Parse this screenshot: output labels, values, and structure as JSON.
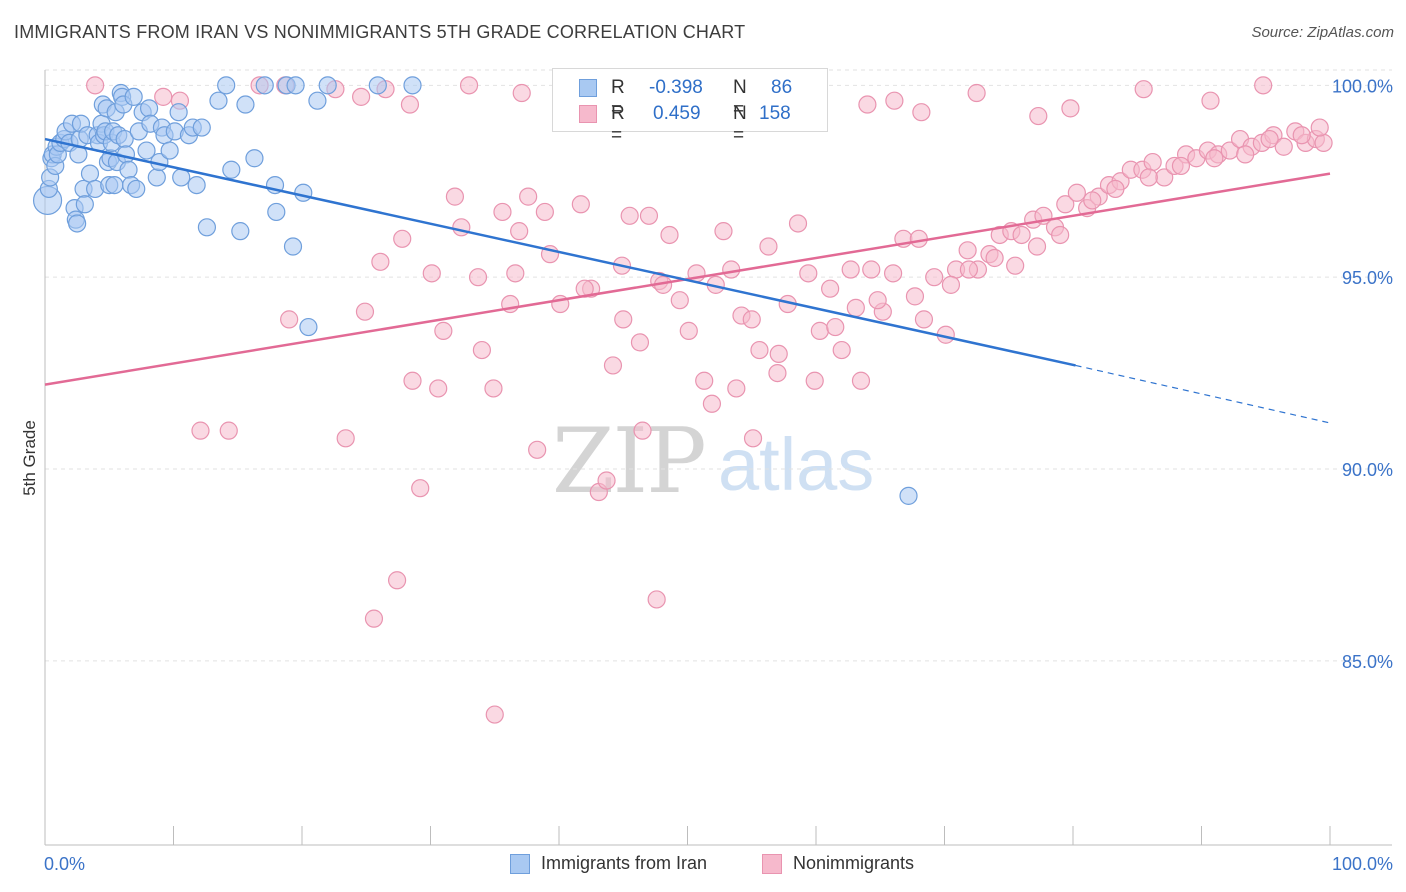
{
  "header": {
    "title": "IMMIGRANTS FROM IRAN VS NONIMMIGRANTS 5TH GRADE CORRELATION CHART",
    "source": "Source: ZipAtlas.com"
  },
  "watermark": {
    "zip": "ZIP",
    "atlas": "atlas"
  },
  "legend": {
    "rows": [
      {
        "r_label": "R =",
        "r_value": "-0.398",
        "n_label": "N =",
        "n_value": "86"
      },
      {
        "r_label": "R =",
        "r_value": "0.459",
        "n_label": "N =",
        "n_value": "158"
      }
    ]
  },
  "bottom_legend": {
    "items": [
      {
        "label": "Immigrants from Iran"
      },
      {
        "label": "Nonimmigrants"
      }
    ]
  },
  "colors": {
    "blue_fill": "#a9c9f2",
    "blue_stroke": "#6f9fdc",
    "blue_line": "#2f74d0",
    "pink_fill": "#f6b9cc",
    "pink_stroke": "#e994b0",
    "pink_line": "#e26a95",
    "tick_text": "#3b73c8",
    "grid": "#e2e2e2"
  },
  "chart_data": {
    "type": "scatter",
    "title": "IMMIGRANTS FROM IRAN VS NONIMMIGRANTS 5TH GRADE CORRELATION CHART",
    "xlabel": "",
    "ylabel": "5th Grade",
    "xlim": [
      0,
      100
    ],
    "ylim": [
      80.2,
      100.4
    ],
    "x_tick_labels": [
      "0.0%",
      "100.0%"
    ],
    "y_ticks": [
      85,
      90,
      95,
      100
    ],
    "y_tick_labels": [
      "85.0%",
      "90.0%",
      "95.0%",
      "100.0%"
    ],
    "grid": true,
    "legend_placement": "top-center",
    "series": [
      {
        "name": "Immigrants from Iran",
        "r": -0.398,
        "n": 86,
        "trend": {
          "x0": 0,
          "y0": 98.6,
          "x1": 80.2,
          "y1": 92.7,
          "dash_to_x": 100,
          "dash_to_y": 91.2
        },
        "points": [
          [
            0.2,
            97.0
          ],
          [
            0.3,
            97.3
          ],
          [
            0.4,
            97.6
          ],
          [
            0.5,
            98.1
          ],
          [
            0.6,
            98.2
          ],
          [
            0.8,
            97.9
          ],
          [
            0.9,
            98.4
          ],
          [
            1.0,
            98.2
          ],
          [
            1.2,
            98.5
          ],
          [
            1.5,
            98.6
          ],
          [
            1.6,
            98.8
          ],
          [
            1.9,
            98.5
          ],
          [
            2.1,
            99.0
          ],
          [
            2.3,
            96.8
          ],
          [
            2.4,
            96.5
          ],
          [
            2.5,
            96.4
          ],
          [
            2.6,
            98.2
          ],
          [
            2.7,
            98.6
          ],
          [
            2.8,
            99.0
          ],
          [
            3.0,
            97.3
          ],
          [
            3.1,
            96.9
          ],
          [
            3.3,
            98.7
          ],
          [
            3.5,
            97.7
          ],
          [
            3.9,
            97.3
          ],
          [
            4.1,
            98.7
          ],
          [
            4.2,
            98.5
          ],
          [
            4.4,
            99.0
          ],
          [
            4.5,
            99.5
          ],
          [
            4.6,
            98.7
          ],
          [
            4.7,
            98.8
          ],
          [
            4.8,
            99.4
          ],
          [
            4.9,
            98.0
          ],
          [
            5.0,
            97.4
          ],
          [
            5.1,
            98.1
          ],
          [
            5.2,
            98.5
          ],
          [
            5.3,
            98.8
          ],
          [
            5.4,
            97.4
          ],
          [
            5.5,
            99.3
          ],
          [
            5.6,
            98.0
          ],
          [
            5.7,
            98.7
          ],
          [
            5.9,
            99.8
          ],
          [
            6.0,
            99.7
          ],
          [
            6.1,
            99.5
          ],
          [
            6.2,
            98.6
          ],
          [
            6.3,
            98.2
          ],
          [
            6.5,
            97.8
          ],
          [
            6.7,
            97.4
          ],
          [
            6.9,
            99.7
          ],
          [
            7.1,
            97.3
          ],
          [
            7.3,
            98.8
          ],
          [
            7.6,
            99.3
          ],
          [
            7.9,
            98.3
          ],
          [
            8.1,
            99.4
          ],
          [
            8.2,
            99.0
          ],
          [
            8.7,
            97.6
          ],
          [
            8.9,
            98.0
          ],
          [
            9.1,
            98.9
          ],
          [
            9.3,
            98.7
          ],
          [
            9.7,
            98.3
          ],
          [
            10.1,
            98.8
          ],
          [
            10.4,
            99.3
          ],
          [
            10.6,
            97.6
          ],
          [
            11.2,
            98.7
          ],
          [
            11.5,
            98.9
          ],
          [
            11.8,
            97.4
          ],
          [
            12.2,
            98.9
          ],
          [
            12.6,
            96.3
          ],
          [
            13.5,
            99.6
          ],
          [
            14.1,
            100.0
          ],
          [
            14.5,
            97.8
          ],
          [
            15.2,
            96.2
          ],
          [
            15.6,
            99.5
          ],
          [
            16.3,
            98.1
          ],
          [
            17.1,
            100.0
          ],
          [
            17.9,
            97.4
          ],
          [
            18.0,
            96.7
          ],
          [
            18.8,
            100.0
          ],
          [
            19.3,
            95.8
          ],
          [
            19.5,
            100.0
          ],
          [
            20.1,
            97.2
          ],
          [
            20.5,
            93.7
          ],
          [
            21.2,
            99.6
          ],
          [
            22.0,
            100.0
          ],
          [
            25.9,
            100.0
          ],
          [
            28.6,
            100.0
          ],
          [
            67.2,
            89.3
          ]
        ]
      },
      {
        "name": "Nonimmigrants",
        "r": 0.459,
        "n": 158,
        "trend": {
          "x0": 0,
          "y0": 92.2,
          "x1": 100,
          "y1": 97.7
        },
        "points": [
          [
            3.9,
            100.0
          ],
          [
            9.2,
            99.7
          ],
          [
            10.5,
            99.6
          ],
          [
            14.3,
            91.0
          ],
          [
            16.7,
            100.0
          ],
          [
            18.7,
            100.0
          ],
          [
            22.6,
            99.9
          ],
          [
            24.6,
            99.7
          ],
          [
            26.5,
            99.9
          ],
          [
            28.4,
            99.5
          ],
          [
            33.0,
            100.0
          ],
          [
            37.1,
            99.8
          ],
          [
            40.6,
            99.9
          ],
          [
            41.3,
            99.5
          ],
          [
            45.5,
            99.9
          ],
          [
            48.4,
            99.7
          ],
          [
            50.7,
            99.6
          ],
          [
            52.4,
            99.8
          ],
          [
            56.7,
            100.0
          ],
          [
            59.2,
            99.4
          ],
          [
            64.0,
            99.5
          ],
          [
            66.1,
            99.6
          ],
          [
            68.2,
            99.3
          ],
          [
            72.5,
            99.8
          ],
          [
            77.3,
            99.2
          ],
          [
            79.8,
            99.4
          ],
          [
            85.5,
            99.9
          ],
          [
            90.7,
            99.6
          ],
          [
            94.8,
            100.0
          ],
          [
            23.4,
            90.8
          ],
          [
            24.9,
            94.1
          ],
          [
            26.1,
            95.4
          ],
          [
            27.8,
            96.0
          ],
          [
            28.6,
            92.3
          ],
          [
            29.2,
            89.5
          ],
          [
            30.1,
            95.1
          ],
          [
            30.6,
            92.1
          ],
          [
            31.0,
            93.6
          ],
          [
            31.9,
            97.1
          ],
          [
            32.4,
            96.3
          ],
          [
            33.7,
            95.0
          ],
          [
            34.0,
            93.1
          ],
          [
            34.9,
            92.1
          ],
          [
            35.6,
            96.7
          ],
          [
            36.2,
            94.3
          ],
          [
            36.9,
            96.2
          ],
          [
            37.6,
            97.1
          ],
          [
            38.3,
            90.5
          ],
          [
            38.9,
            96.7
          ],
          [
            39.3,
            95.6
          ],
          [
            40.1,
            94.3
          ],
          [
            41.7,
            96.9
          ],
          [
            42.5,
            94.7
          ],
          [
            43.1,
            89.4
          ],
          [
            44.2,
            92.7
          ],
          [
            44.9,
            95.3
          ],
          [
            45.5,
            96.6
          ],
          [
            46.3,
            93.3
          ],
          [
            47.0,
            96.6
          ],
          [
            47.8,
            94.9
          ],
          [
            48.6,
            96.1
          ],
          [
            49.4,
            94.4
          ],
          [
            50.1,
            93.6
          ],
          [
            50.7,
            95.1
          ],
          [
            51.3,
            92.3
          ],
          [
            51.9,
            91.7
          ],
          [
            52.8,
            96.2
          ],
          [
            53.4,
            95.2
          ],
          [
            54.2,
            94.0
          ],
          [
            55.0,
            93.9
          ],
          [
            55.6,
            93.1
          ],
          [
            56.3,
            95.8
          ],
          [
            57.1,
            93.0
          ],
          [
            57.8,
            94.3
          ],
          [
            58.6,
            96.4
          ],
          [
            59.4,
            95.1
          ],
          [
            60.3,
            93.6
          ],
          [
            61.1,
            94.7
          ],
          [
            62.0,
            93.1
          ],
          [
            62.7,
            95.2
          ],
          [
            63.5,
            92.3
          ],
          [
            64.3,
            95.2
          ],
          [
            65.2,
            94.1
          ],
          [
            66.0,
            95.1
          ],
          [
            66.8,
            96.0
          ],
          [
            67.7,
            94.5
          ],
          [
            68.4,
            93.9
          ],
          [
            69.2,
            95.0
          ],
          [
            70.1,
            93.5
          ],
          [
            70.9,
            95.2
          ],
          [
            71.8,
            95.7
          ],
          [
            72.6,
            95.2
          ],
          [
            73.5,
            95.6
          ],
          [
            74.3,
            96.1
          ],
          [
            75.2,
            96.2
          ],
          [
            76.0,
            96.1
          ],
          [
            76.9,
            96.5
          ],
          [
            77.7,
            96.6
          ],
          [
            78.6,
            96.3
          ],
          [
            79.4,
            96.9
          ],
          [
            80.3,
            97.2
          ],
          [
            81.1,
            96.8
          ],
          [
            82.0,
            97.1
          ],
          [
            82.8,
            97.4
          ],
          [
            83.7,
            97.5
          ],
          [
            84.5,
            97.8
          ],
          [
            85.4,
            97.8
          ],
          [
            86.2,
            98.0
          ],
          [
            87.1,
            97.6
          ],
          [
            87.9,
            97.9
          ],
          [
            88.8,
            98.2
          ],
          [
            89.6,
            98.1
          ],
          [
            90.5,
            98.3
          ],
          [
            91.3,
            98.2
          ],
          [
            92.2,
            98.3
          ],
          [
            93.0,
            98.6
          ],
          [
            93.9,
            98.4
          ],
          [
            94.7,
            98.5
          ],
          [
            95.6,
            98.7
          ],
          [
            96.4,
            98.4
          ],
          [
            97.3,
            98.8
          ],
          [
            98.1,
            98.5
          ],
          [
            98.9,
            98.6
          ],
          [
            99.5,
            98.5
          ],
          [
            25.6,
            86.1
          ],
          [
            27.4,
            87.1
          ],
          [
            43.7,
            89.7
          ],
          [
            47.6,
            86.6
          ],
          [
            35.0,
            83.6
          ],
          [
            12.1,
            91.0
          ],
          [
            19.0,
            93.9
          ],
          [
            36.6,
            95.1
          ],
          [
            42.0,
            94.7
          ],
          [
            46.5,
            91.0
          ],
          [
            48.1,
            94.8
          ],
          [
            52.2,
            94.8
          ],
          [
            53.8,
            92.1
          ],
          [
            55.1,
            90.8
          ],
          [
            57.0,
            92.5
          ],
          [
            59.9,
            92.3
          ],
          [
            61.5,
            93.7
          ],
          [
            63.1,
            94.2
          ],
          [
            64.8,
            94.4
          ],
          [
            68.0,
            96.0
          ],
          [
            70.5,
            94.8
          ],
          [
            71.9,
            95.2
          ],
          [
            73.9,
            95.5
          ],
          [
            75.5,
            95.3
          ],
          [
            77.2,
            95.8
          ],
          [
            79.0,
            96.1
          ],
          [
            81.5,
            97.0
          ],
          [
            83.3,
            97.3
          ],
          [
            85.9,
            97.6
          ],
          [
            88.4,
            97.9
          ],
          [
            91.0,
            98.1
          ],
          [
            93.4,
            98.2
          ],
          [
            95.3,
            98.6
          ],
          [
            97.8,
            98.7
          ],
          [
            99.2,
            98.9
          ],
          [
            45.0,
            93.9
          ]
        ]
      }
    ]
  }
}
